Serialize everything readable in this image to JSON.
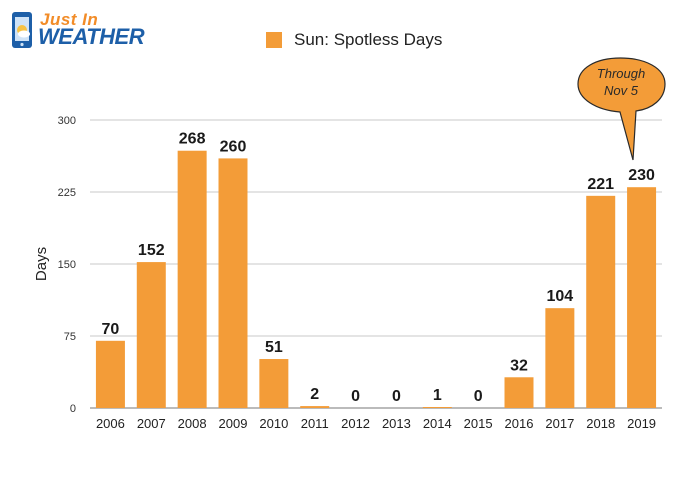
{
  "brand": {
    "just_in": "Just In",
    "weather": "WEATHER",
    "orange": "#f28c28",
    "blue": "#1d5fa8"
  },
  "annotation": {
    "line1": "Through",
    "line2": "Nov 5",
    "target_category": "2019"
  },
  "chart_data": {
    "type": "bar",
    "categories": [
      "2006",
      "2007",
      "2008",
      "2009",
      "2010",
      "2011",
      "2012",
      "2013",
      "2014",
      "2015",
      "2016",
      "2017",
      "2018",
      "2019"
    ],
    "series": [
      {
        "name": "Sun: Spotless Days",
        "values": [
          70,
          152,
          268,
          260,
          51,
          2,
          0,
          0,
          1,
          0,
          32,
          104,
          221,
          230
        ],
        "color": "#f39c38"
      }
    ],
    "ylabel": "Days",
    "xlabel": "",
    "ylim": [
      0,
      300
    ],
    "yticks": [
      0,
      75,
      150,
      225,
      300
    ],
    "grid": true,
    "legend_position": "top"
  }
}
